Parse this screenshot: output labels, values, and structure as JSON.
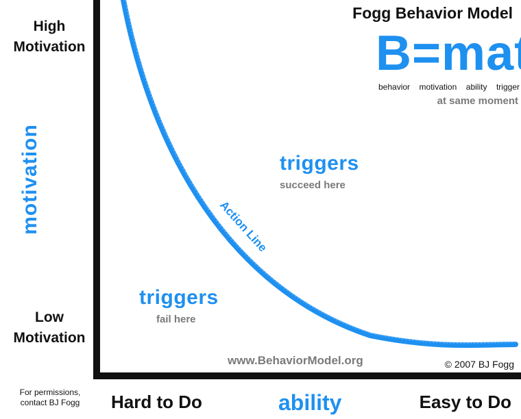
{
  "title": "Fogg Behavior Model",
  "formula": {
    "text": "B=mat",
    "labels": [
      "behavior",
      "motivation",
      "ability",
      "trigger"
    ],
    "note": "at same moment"
  },
  "y_axis": {
    "high": [
      "High",
      "Motivation"
    ],
    "low": [
      "Low",
      "Motivation"
    ],
    "label": "motivation"
  },
  "x_axis": {
    "left": "Hard to Do",
    "label": "ability",
    "right": "Easy to Do"
  },
  "curve_label": "Action Line",
  "zones": {
    "above": {
      "title": "triggers",
      "subtitle": "succeed here"
    },
    "below": {
      "title": "triggers",
      "subtitle": "fail here"
    }
  },
  "footer": {
    "website": "www.BehaviorModel.org",
    "copyright": "© 2007 BJ Fogg",
    "permissions": [
      "For permissions,",
      "contact BJ Fogg"
    ]
  },
  "colors": {
    "accent": "#1e90f0",
    "text": "#111111",
    "muted": "#7a7a7a"
  }
}
